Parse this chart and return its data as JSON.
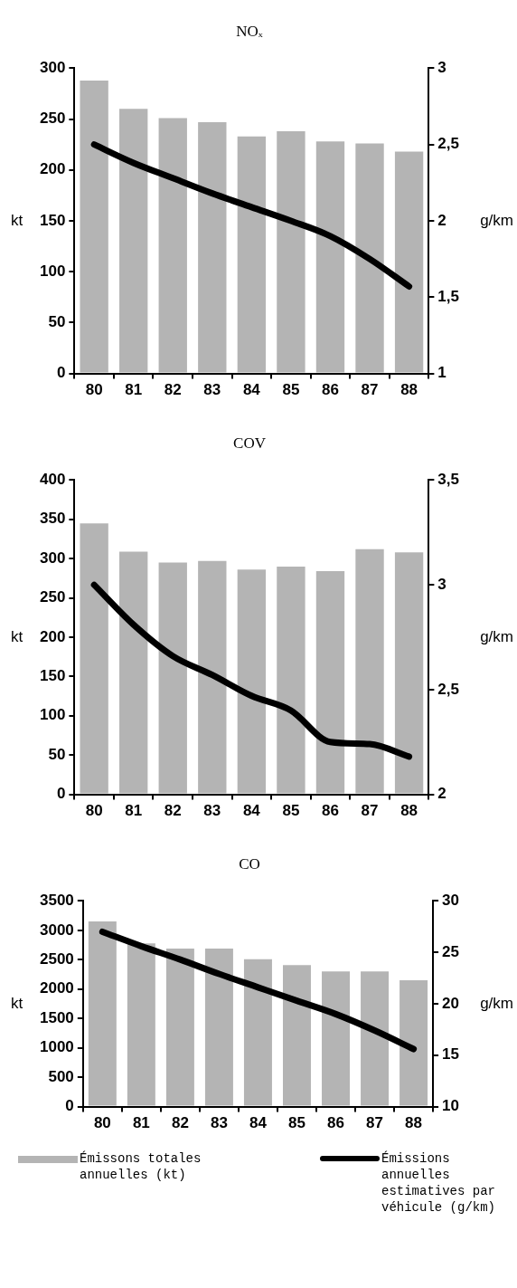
{
  "chart_data": [
    {
      "type": "bar",
      "title": "NOₓ",
      "ylabel": "kt",
      "y2label": "g/km",
      "categories": [
        "80",
        "81",
        "82",
        "83",
        "84",
        "85",
        "86",
        "87",
        "88"
      ],
      "series": [
        {
          "color": "#b4b4b4",
          "values": [
            288,
            260,
            251,
            247,
            233,
            238,
            228,
            226,
            218
          ]
        },
        {
          "type": "line",
          "axis": "y2",
          "color": "#000000",
          "values": [
            2.5,
            2.38,
            2.28,
            2.18,
            2.09,
            2.0,
            1.9,
            1.75,
            1.57
          ]
        }
      ],
      "ylim": [
        0,
        300
      ],
      "yticks": [
        0,
        50,
        100,
        150,
        200,
        250,
        300
      ],
      "y2lim": [
        1,
        3
      ],
      "y2ticks": [
        1,
        {
          "value": 1.5,
          "label": "1,5"
        },
        2,
        {
          "value": 2.5,
          "label": "2,5"
        },
        3
      ],
      "marker": "none",
      "line_style": "solid"
    },
    {
      "type": "bar",
      "title": "COV",
      "ylabel": "kt",
      "y2label": "g/km",
      "categories": [
        "80",
        "81",
        "82",
        "83",
        "84",
        "85",
        "86",
        "87",
        "88"
      ],
      "series": [
        {
          "color": "#b4b4b4",
          "values": [
            345,
            309,
            295,
            297,
            286,
            290,
            284,
            312,
            308
          ]
        },
        {
          "type": "line",
          "axis": "y2",
          "color": "#000000",
          "values": [
            3.0,
            2.81,
            2.66,
            2.57,
            2.47,
            2.4,
            2.25,
            2.24,
            2.18
          ]
        }
      ],
      "ylim": [
        0,
        400
      ],
      "yticks": [
        0,
        50,
        100,
        150,
        200,
        250,
        300,
        350,
        400
      ],
      "y2lim": [
        2,
        3.5
      ],
      "y2ticks": [
        2,
        {
          "value": 2.5,
          "label": "2,5"
        },
        3,
        {
          "value": 3.5,
          "label": "3,5"
        }
      ],
      "marker": "none",
      "line_style": "solid"
    },
    {
      "type": "bar",
      "title": "CO",
      "ylabel": "kt",
      "y2label": "g/km",
      "categories": [
        "80",
        "81",
        "82",
        "83",
        "84",
        "85",
        "86",
        "87",
        "88"
      ],
      "series": [
        {
          "name": "Émissons totales annuelles (kt)",
          "color": "#b4b4b4",
          "values": [
            3150,
            2780,
            2690,
            2690,
            2510,
            2410,
            2300,
            2300,
            2150
          ]
        },
        {
          "type": "line",
          "axis": "y2",
          "name": "Émissions annuelles estimatives par véhicule (g/km)",
          "color": "#000000",
          "values": [
            27.0,
            25.6,
            24.3,
            22.9,
            21.6,
            20.3,
            19.0,
            17.4,
            15.6
          ]
        }
      ],
      "ylim": [
        0,
        3500
      ],
      "yticks": [
        0,
        500,
        1000,
        1500,
        2000,
        2500,
        3000,
        3500
      ],
      "y2lim": [
        10,
        30
      ],
      "y2ticks": [
        10,
        15,
        20,
        25,
        30
      ],
      "marker": "none",
      "line_style": "solid",
      "legend": "bottom"
    }
  ]
}
